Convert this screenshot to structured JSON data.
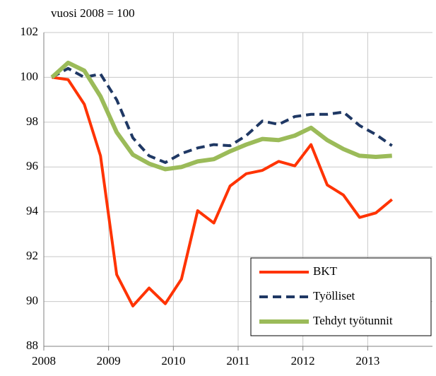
{
  "chart_data": {
    "type": "line",
    "subtitle": "vuosi 2008 = 100",
    "x": [
      2008.125,
      2008.375,
      2008.625,
      2008.875,
      2009.125,
      2009.375,
      2009.625,
      2009.875,
      2010.125,
      2010.375,
      2010.625,
      2010.875,
      2011.125,
      2011.375,
      2011.625,
      2011.875,
      2012.125,
      2012.375,
      2012.625,
      2012.875,
      2013.125,
      2013.375
    ],
    "series": [
      {
        "name": "BKT",
        "color": "#ff3300",
        "dashed": false,
        "values": [
          100,
          99.9,
          98.8,
          96.5,
          91.2,
          89.8,
          90.6,
          89.9,
          91.0,
          94.05,
          93.5,
          95.15,
          95.7,
          95.85,
          96.25,
          96.05,
          97.0,
          95.2,
          94.75,
          93.75,
          93.95,
          94.55
        ]
      },
      {
        "name": "Työlliset",
        "color": "#1f3864",
        "dashed": true,
        "values": [
          100,
          100.4,
          100.0,
          100.15,
          99.0,
          97.3,
          96.5,
          96.2,
          96.6,
          96.85,
          97.0,
          96.95,
          97.4,
          98.05,
          97.9,
          98.25,
          98.35,
          98.35,
          98.45,
          97.85,
          97.45,
          96.95
        ]
      },
      {
        "name": "Tehdyt työtunnit",
        "color": "#9bbb59",
        "dashed": false,
        "values": [
          100,
          100.65,
          100.3,
          99.15,
          97.55,
          96.55,
          96.15,
          95.9,
          96.0,
          96.25,
          96.35,
          96.7,
          97.0,
          97.25,
          97.2,
          97.4,
          97.75,
          97.2,
          96.8,
          96.5,
          96.45,
          96.5
        ]
      }
    ],
    "xlim": [
      2008,
      2014
    ],
    "xticks": [
      2008,
      2009,
      2010,
      2011,
      2012,
      2013
    ],
    "ylim": [
      88,
      102
    ],
    "yticks": [
      88,
      90,
      92,
      94,
      96,
      98,
      100,
      102
    ],
    "grid": true,
    "legend": "lower right"
  }
}
